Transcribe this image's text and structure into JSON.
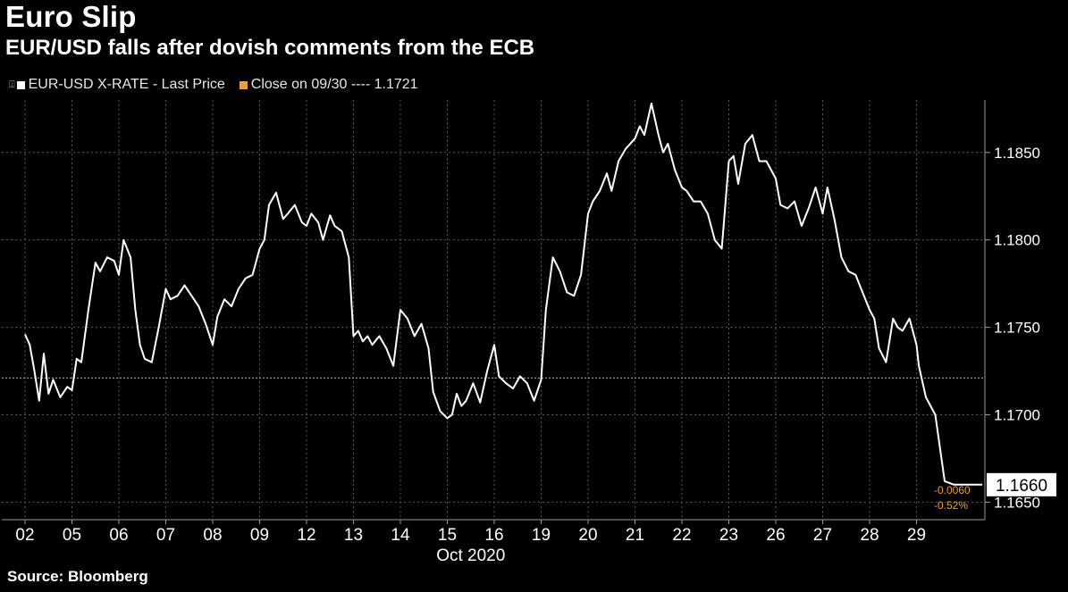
{
  "title": "Euro Slip",
  "subtitle": "EUR/USD falls after dovish comments from the ECB",
  "source": "Source: Bloomberg",
  "legend": {
    "series_label": "EUR-USD X-RATE - Last Price",
    "ref_label": "Close on 09/30 ---- 1.1721"
  },
  "colors": {
    "background": "#000000",
    "series": "#ffffff",
    "reference": "#f0a030",
    "grid": "#5a5a5a",
    "axis": "#9a9a9a"
  },
  "chart_data": {
    "type": "line",
    "title": "Euro Slip",
    "subtitle": "EUR/USD falls after dovish comments from the ECB",
    "xlabel": "Oct 2020",
    "ylabel": "",
    "ylim": [
      1.164,
      1.188
    ],
    "yticks": [
      1.165,
      1.17,
      1.175,
      1.18,
      1.185
    ],
    "ytick_labels": [
      "1.1650",
      "1.1700",
      "1.1750",
      "1.1800",
      "1.1850"
    ],
    "xticks": [
      "02",
      "05",
      "06",
      "07",
      "08",
      "09",
      "12",
      "13",
      "14",
      "15",
      "16",
      "19",
      "20",
      "21",
      "22",
      "23",
      "26",
      "27",
      "28",
      "29"
    ],
    "grid": true,
    "legend_position": "top-left",
    "reference_line": {
      "label": "Close on 09/30",
      "value": 1.1721
    },
    "last_value": {
      "label": "1.1660",
      "value": 1.166
    },
    "change_labels": [
      "-0.0060",
      "-0.52%"
    ],
    "series": [
      {
        "name": "EUR-USD X-RATE - Last Price",
        "x": [
          0,
          0.1,
          0.2,
          0.3,
          0.4,
          0.5,
          0.6,
          0.75,
          0.9,
          1.0,
          1.1,
          1.2,
          1.35,
          1.5,
          1.6,
          1.75,
          1.9,
          2.0,
          2.1,
          2.25,
          2.35,
          2.45,
          2.55,
          2.7,
          2.85,
          3.0,
          3.1,
          3.25,
          3.4,
          3.55,
          3.7,
          3.85,
          4.0,
          4.1,
          4.25,
          4.4,
          4.55,
          4.7,
          4.85,
          5.0,
          5.1,
          5.2,
          5.35,
          5.5,
          5.6,
          5.75,
          5.9,
          6.0,
          6.1,
          6.25,
          6.35,
          6.5,
          6.6,
          6.75,
          6.9,
          7.0,
          7.1,
          7.2,
          7.3,
          7.4,
          7.55,
          7.7,
          7.85,
          8.0,
          8.15,
          8.3,
          8.45,
          8.6,
          8.7,
          8.85,
          9.0,
          9.1,
          9.2,
          9.3,
          9.4,
          9.55,
          9.7,
          9.85,
          10.0,
          10.1,
          10.25,
          10.4,
          10.55,
          10.7,
          10.85,
          11.0,
          11.1,
          11.25,
          11.4,
          11.55,
          11.7,
          11.85,
          12.0,
          12.1,
          12.25,
          12.4,
          12.5,
          12.65,
          12.8,
          13.0,
          13.1,
          13.2,
          13.35,
          13.5,
          13.6,
          13.7,
          13.85,
          14.0,
          14.1,
          14.25,
          14.4,
          14.55,
          14.7,
          14.85,
          15.0,
          15.1,
          15.2,
          15.35,
          15.5,
          15.65,
          15.8,
          15.9,
          16.0,
          16.1,
          16.25,
          16.4,
          16.55,
          16.7,
          16.85,
          17.0,
          17.1,
          17.25,
          17.4,
          17.55,
          17.7,
          17.85,
          18.0,
          18.1,
          18.2,
          18.35,
          18.5,
          18.6,
          18.7,
          18.85,
          19.0,
          19.05,
          19.2,
          19.4,
          19.6,
          19.8,
          20.4
        ],
        "y": [
          1.1746,
          1.174,
          1.1725,
          1.1708,
          1.1735,
          1.1712,
          1.172,
          1.171,
          1.1716,
          1.1714,
          1.1732,
          1.173,
          1.176,
          1.1787,
          1.1782,
          1.179,
          1.1788,
          1.178,
          1.18,
          1.179,
          1.176,
          1.174,
          1.1732,
          1.173,
          1.175,
          1.1772,
          1.1766,
          1.1768,
          1.1774,
          1.1768,
          1.1762,
          1.1752,
          1.174,
          1.1756,
          1.1766,
          1.1762,
          1.1772,
          1.1778,
          1.178,
          1.1795,
          1.18,
          1.182,
          1.1827,
          1.1812,
          1.1815,
          1.182,
          1.181,
          1.1808,
          1.1815,
          1.181,
          1.18,
          1.1814,
          1.1808,
          1.1805,
          1.179,
          1.1745,
          1.1748,
          1.1742,
          1.1745,
          1.174,
          1.1745,
          1.1738,
          1.1728,
          1.176,
          1.1755,
          1.1745,
          1.1752,
          1.1738,
          1.1713,
          1.1702,
          1.1698,
          1.17,
          1.1712,
          1.1705,
          1.1708,
          1.1718,
          1.1707,
          1.1725,
          1.174,
          1.1722,
          1.1718,
          1.1715,
          1.1722,
          1.1718,
          1.1708,
          1.172,
          1.176,
          1.179,
          1.1782,
          1.177,
          1.1768,
          1.178,
          1.1815,
          1.1822,
          1.1828,
          1.1838,
          1.1828,
          1.1845,
          1.1852,
          1.1858,
          1.1865,
          1.186,
          1.1878,
          1.186,
          1.185,
          1.1855,
          1.184,
          1.183,
          1.1828,
          1.1822,
          1.1822,
          1.1815,
          1.18,
          1.1795,
          1.1845,
          1.1848,
          1.1832,
          1.1855,
          1.186,
          1.1845,
          1.1845,
          1.184,
          1.1835,
          1.182,
          1.1818,
          1.1822,
          1.1808,
          1.1818,
          1.183,
          1.1815,
          1.183,
          1.1812,
          1.179,
          1.1782,
          1.178,
          1.177,
          1.176,
          1.1755,
          1.1738,
          1.173,
          1.1755,
          1.175,
          1.1748,
          1.1755,
          1.174,
          1.1728,
          1.171,
          1.17,
          1.1662,
          1.166,
          1.166
        ]
      }
    ]
  }
}
